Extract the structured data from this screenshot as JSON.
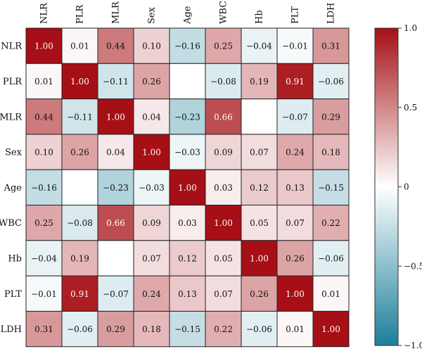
{
  "chart_data": {
    "type": "heatmap",
    "title": "",
    "labels": [
      "NLR",
      "PLR",
      "MLR",
      "Sex",
      "Age",
      "WBC",
      "Hb",
      "PLT",
      "LDH"
    ],
    "matrix": [
      [
        1.0,
        0.01,
        0.44,
        0.1,
        -0.16,
        0.25,
        -0.04,
        -0.01,
        0.31
      ],
      [
        0.01,
        1.0,
        -0.11,
        0.26,
        null,
        -0.08,
        0.19,
        0.91,
        -0.06
      ],
      [
        0.44,
        -0.11,
        1.0,
        0.04,
        -0.23,
        0.66,
        null,
        -0.07,
        0.29
      ],
      [
        0.1,
        0.26,
        0.04,
        1.0,
        -0.03,
        0.09,
        0.07,
        0.24,
        0.18
      ],
      [
        -0.16,
        null,
        -0.23,
        -0.03,
        1.0,
        0.03,
        0.12,
        0.13,
        -0.15
      ],
      [
        0.25,
        -0.08,
        0.66,
        0.09,
        0.03,
        1.0,
        0.05,
        0.07,
        0.22
      ],
      [
        -0.04,
        0.19,
        null,
        0.07,
        0.12,
        0.05,
        1.0,
        0.26,
        -0.06
      ],
      [
        -0.01,
        0.91,
        -0.07,
        0.24,
        0.13,
        0.07,
        0.26,
        1.0,
        0.01
      ],
      [
        0.31,
        -0.06,
        0.29,
        0.18,
        -0.15,
        0.22,
        -0.06,
        0.01,
        1.0
      ]
    ],
    "colorbar": {
      "range": [
        -1.0,
        1.0
      ],
      "ticks": [
        "1.0",
        "0.5",
        "0",
        "−0.5",
        "−1.0"
      ],
      "tick_values": [
        1.0,
        0.5,
        0,
        -0.5,
        -1.0
      ]
    },
    "colors": {
      "positive": "#a50f15",
      "neutral": "#ffffff",
      "negative": "#1b7f9a"
    }
  }
}
